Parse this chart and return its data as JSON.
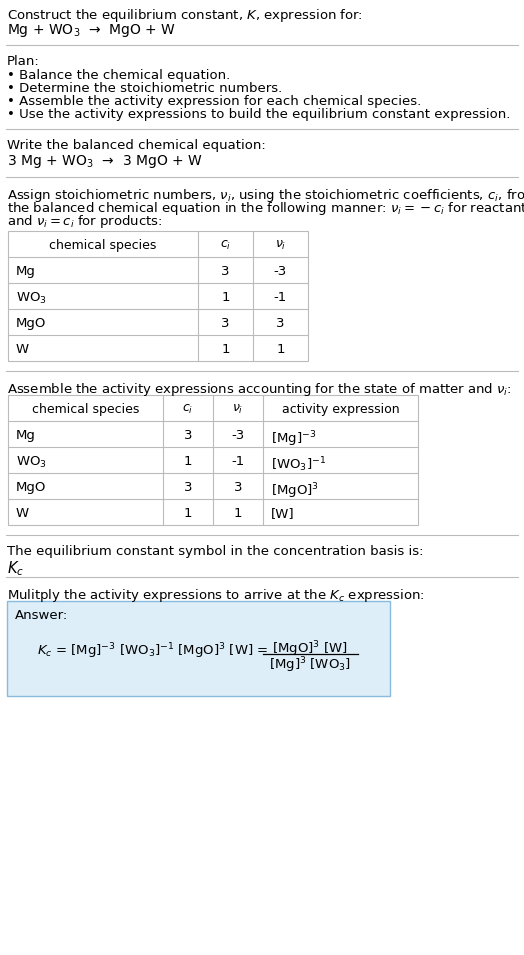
{
  "title_line1": "Construct the equilibrium constant, $K$, expression for:",
  "title_line2": "Mg + WO$_3$  →  MgO + W",
  "plan_header": "Plan:",
  "plan_bullets": [
    "• Balance the chemical equation.",
    "• Determine the stoichiometric numbers.",
    "• Assemble the activity expression for each chemical species.",
    "• Use the activity expressions to build the equilibrium constant expression."
  ],
  "balanced_header": "Write the balanced chemical equation:",
  "balanced_eq": "3 Mg + WO$_3$  →  3 MgO + W",
  "stoich_intro_lines": [
    "Assign stoichiometric numbers, $\\nu_i$, using the stoichiometric coefficients, $c_i$, from",
    "the balanced chemical equation in the following manner: $\\nu_i = -c_i$ for reactants",
    "and $\\nu_i = c_i$ for products:"
  ],
  "table1_headers": [
    "chemical species",
    "$c_i$",
    "$\\nu_i$"
  ],
  "table1_rows": [
    [
      "Mg",
      "3",
      "-3"
    ],
    [
      "WO$_3$",
      "1",
      "-1"
    ],
    [
      "MgO",
      "3",
      "3"
    ],
    [
      "W",
      "1",
      "1"
    ]
  ],
  "activity_intro": "Assemble the activity expressions accounting for the state of matter and $\\nu_i$:",
  "table2_headers": [
    "chemical species",
    "$c_i$",
    "$\\nu_i$",
    "activity expression"
  ],
  "table2_rows": [
    [
      "Mg",
      "3",
      "-3",
      "[Mg]$^{-3}$"
    ],
    [
      "WO$_3$",
      "1",
      "-1",
      "[WO$_3$]$^{-1}$"
    ],
    [
      "MgO",
      "3",
      "3",
      "[MgO]$^3$"
    ],
    [
      "W",
      "1",
      "1",
      "[W]"
    ]
  ],
  "kc_intro": "The equilibrium constant symbol in the concentration basis is:",
  "kc_symbol": "$K_c$",
  "multiply_intro": "Mulitply the activity expressions to arrive at the $K_c$ expression:",
  "answer_box_color": "#ddeef8",
  "answer_border_color": "#88bbdd",
  "bg_color": "#ffffff",
  "text_color": "#000000",
  "table_line_color": "#bbbbbb",
  "font_size": 9.5
}
